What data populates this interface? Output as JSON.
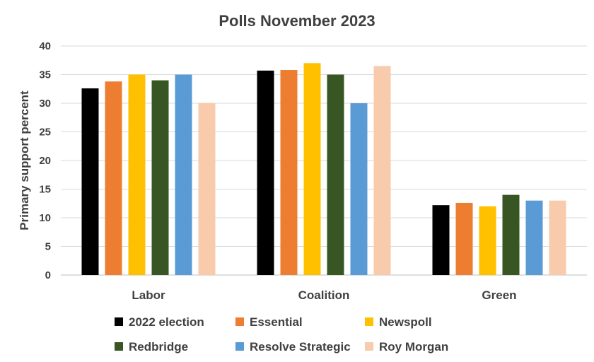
{
  "chart_data": {
    "type": "bar",
    "title": "Polls   November 2023",
    "xlabel": "",
    "ylabel": "Primary support percent",
    "ylim": [
      0,
      40
    ],
    "yticks": [
      0,
      5,
      10,
      15,
      20,
      25,
      30,
      35,
      40
    ],
    "grid": true,
    "legend_position": "bottom",
    "categories": [
      "Labor",
      "Coalition",
      "Green"
    ],
    "series": [
      {
        "name": "2022 election",
        "color": "#000000",
        "values": [
          32.6,
          35.7,
          12.2
        ]
      },
      {
        "name": "Essential",
        "color": "#ED7D31",
        "values": [
          33.8,
          35.8,
          12.6
        ]
      },
      {
        "name": "Newspoll",
        "color": "#FFC000",
        "values": [
          35,
          37,
          12
        ]
      },
      {
        "name": "Redbridge",
        "color": "#375623",
        "values": [
          34,
          35,
          14
        ]
      },
      {
        "name": "Resolve Strategic",
        "color": "#5B9BD5",
        "values": [
          35,
          30,
          13
        ]
      },
      {
        "name": "Roy Morgan",
        "color": "#F8CBAD",
        "values": [
          30,
          36.5,
          13
        ]
      }
    ]
  }
}
